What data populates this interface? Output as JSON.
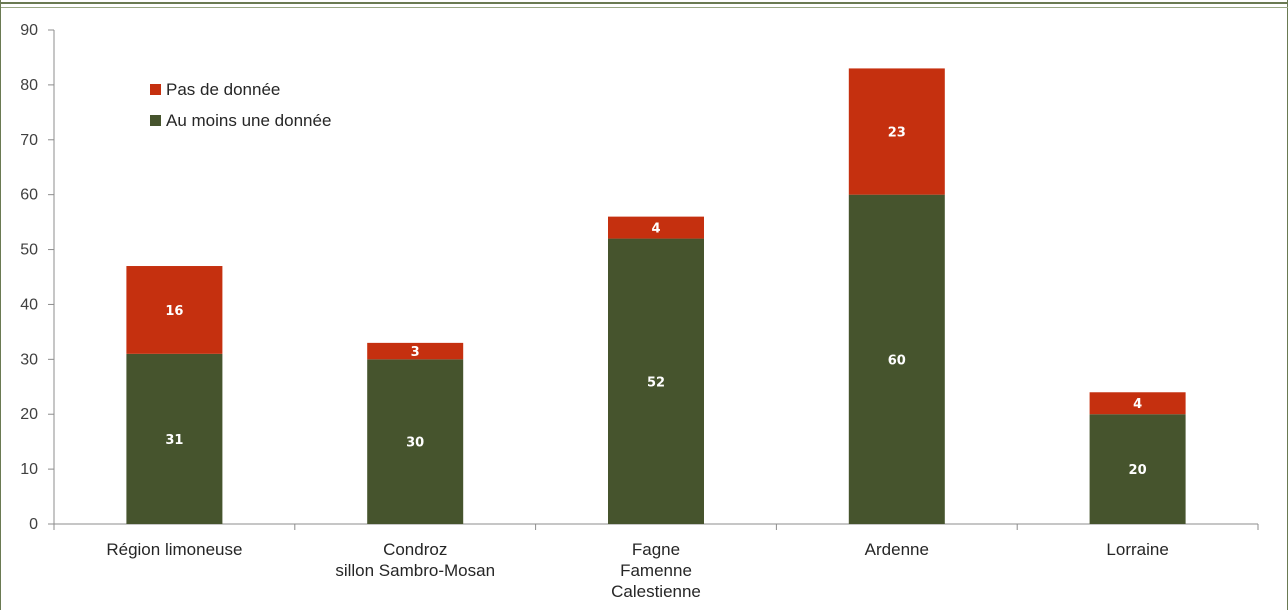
{
  "chart_data": {
    "type": "bar",
    "stacked": true,
    "title": "",
    "xlabel": "",
    "ylabel": "",
    "ylim": [
      0,
      90
    ],
    "yticks": [
      0,
      10,
      20,
      30,
      40,
      50,
      60,
      70,
      80,
      90
    ],
    "grid": false,
    "legend_position": "top-left",
    "categories": [
      [
        "Région limoneuse"
      ],
      [
        "Condroz",
        "sillon Sambro-Mosan"
      ],
      [
        "Fagne",
        "Famenne",
        "Calestienne"
      ],
      [
        "Ardenne"
      ],
      [
        "Lorraine"
      ]
    ],
    "series": [
      {
        "name": "Au moins une donnée",
        "color": "#46542d",
        "values": [
          31,
          30,
          52,
          60,
          20
        ]
      },
      {
        "name": "Pas de donnée",
        "color": "#c5300f",
        "values": [
          16,
          3,
          4,
          23,
          4
        ]
      }
    ],
    "legend_order": [
      "Pas de donnée",
      "Au moins une donnée"
    ]
  }
}
